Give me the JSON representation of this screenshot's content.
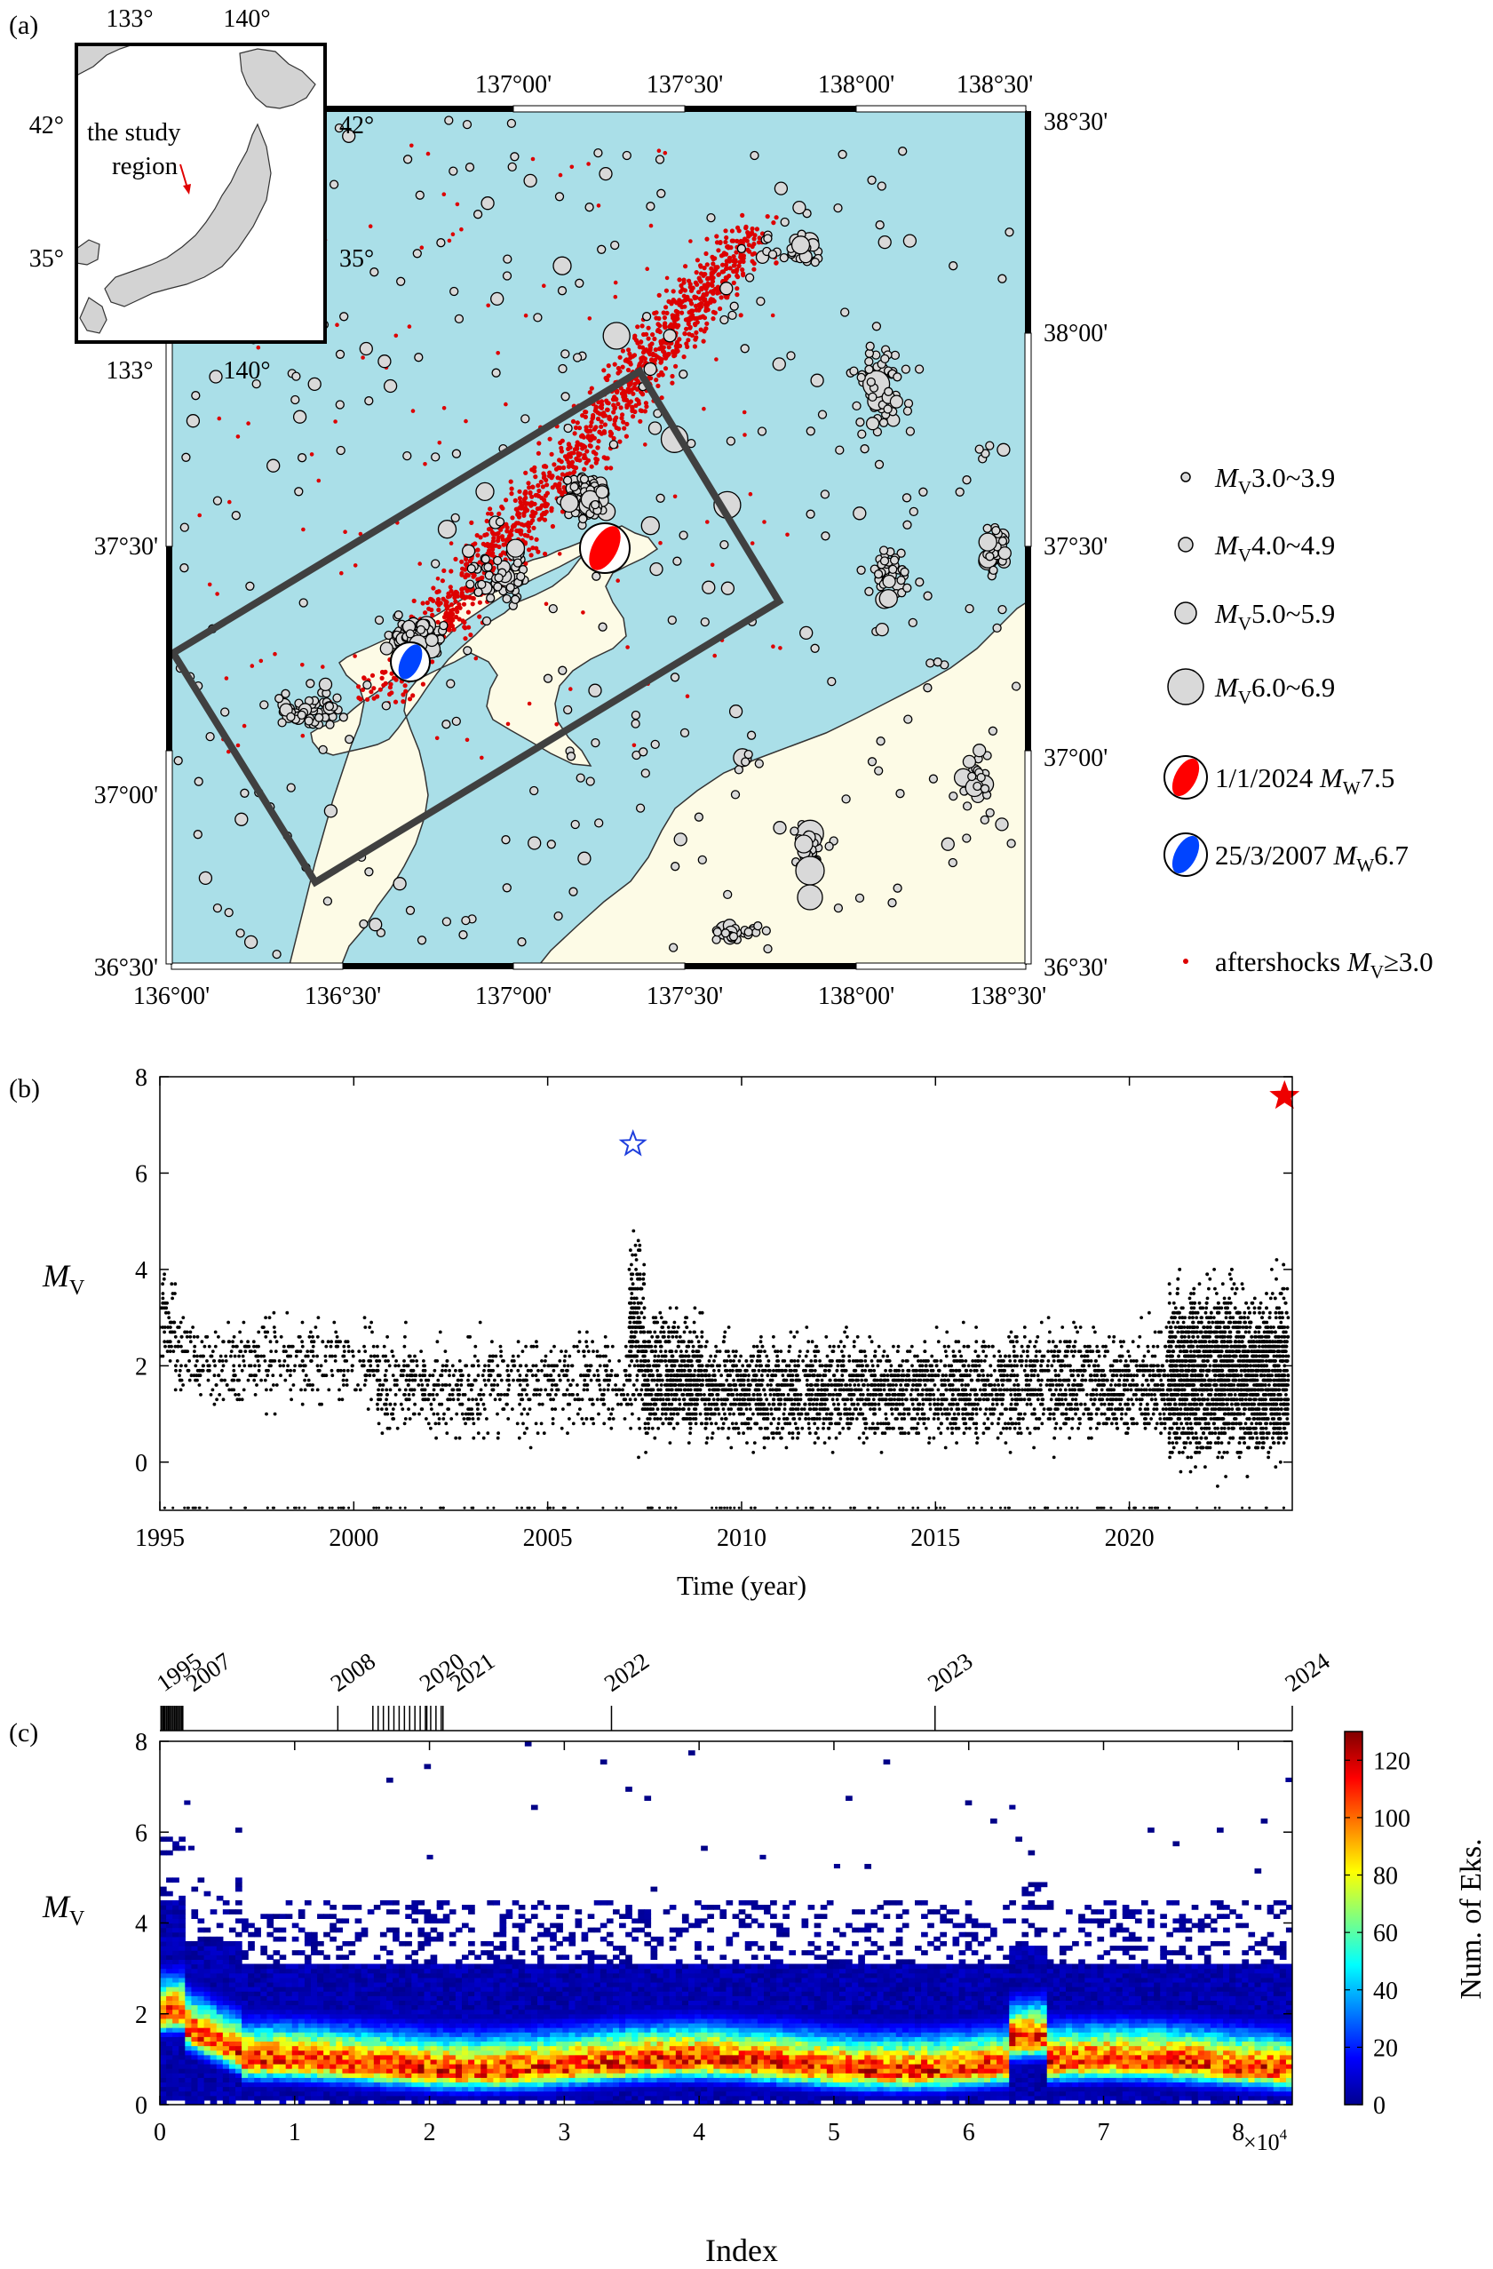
{
  "panels": {
    "a": {
      "label": "(a)",
      "inset": {
        "top_ticks": [
          "133°",
          "140°"
        ],
        "bottom_ticks": [
          "133°",
          "140°"
        ],
        "left_ticks": [
          "42°",
          "35°"
        ],
        "right_ticks": [
          "42°",
          "35°"
        ],
        "annotation_line1": "the study",
        "annotation_line2": "region"
      },
      "top_ticks": [
        "137°00'",
        "137°30'",
        "138°00'",
        "138°30'"
      ],
      "bottom_ticks": [
        "136°00'",
        "136°30'",
        "137°00'",
        "137°30'",
        "138°00'",
        "138°30'"
      ],
      "right_ticks": [
        "38°30'",
        "38°00'",
        "37°30'",
        "37°00'",
        "36°30'"
      ],
      "left_ticks": [
        "37°30'",
        "37°00'",
        "36°30'"
      ],
      "legend": [
        {
          "m": "M",
          "sub": "V",
          "text": "3.0~3.9"
        },
        {
          "m": "M",
          "sub": "V",
          "text": "4.0~4.9"
        },
        {
          "m": "M",
          "sub": "V",
          "text": "5.0~5.9"
        },
        {
          "m": "M",
          "sub": "V",
          "text": "6.0~6.9"
        },
        {
          "pre": "1/1/2024 ",
          "m": "M",
          "sub": "W",
          "text": "7.5"
        },
        {
          "pre": "25/3/2007 ",
          "m": "M",
          "sub": "W",
          "text": "6.7"
        },
        {
          "pre": "aftershocks ",
          "m": "M",
          "sub": "V",
          "text": "≥3.0"
        }
      ],
      "colors": {
        "sea": "#aadfe8",
        "land": "#fdfbe6",
        "mainshock_2024": "#ff0000",
        "mainshock_2007": "#0044ff",
        "aftershock": "#dd0000",
        "box": "#404040"
      }
    },
    "b": {
      "label": "(b)",
      "xlabel": "Time (year)",
      "ylabel_m": "M",
      "ylabel_sub": "V"
    },
    "c": {
      "label": "(c)",
      "xlabel": "Index",
      "ylabel_m": "M",
      "ylabel_sub": "V",
      "x_multiplier": "×10",
      "x_multiplier_exp": "4",
      "colorbar_label": "Num. of Eks.",
      "colorbar_ticks": [
        "0",
        "20",
        "40",
        "60",
        "80",
        "100",
        "120"
      ],
      "year_labels": [
        "1995",
        "2007",
        "2008",
        "2020",
        "2021",
        "2022",
        "2023",
        "2024"
      ]
    }
  },
  "chart_data": [
    {
      "type": "scatter",
      "panel": "b",
      "xlabel": "Time (year)",
      "ylabel": "MV",
      "xlim": [
        1995,
        2024.2
      ],
      "ylim": [
        -1,
        8
      ],
      "xticks": [
        "1995",
        "2000",
        "2005",
        "2010",
        "2015",
        "2020"
      ],
      "yticks": [
        "0",
        "2",
        "4",
        "6",
        "8"
      ],
      "markers": [
        {
          "x": 2007.2,
          "y": 6.6,
          "style": "open-star",
          "color": "#1f3fdd"
        },
        {
          "x": 2024.0,
          "y": 7.6,
          "style": "filled-star",
          "color": "#ee0000"
        }
      ],
      "segments": [
        {
          "x0": 1995.0,
          "x1": 1995.4,
          "ymin": 1.3,
          "ymax": 4.4,
          "density": 1.0
        },
        {
          "x0": 1995.4,
          "x1": 2000.5,
          "ymin": 0.8,
          "ymax": 3.4,
          "density": 0.6
        },
        {
          "x0": 2000.5,
          "x1": 2007.1,
          "ymin": 0.1,
          "ymax": 3.1,
          "density": 0.8
        },
        {
          "x0": 2007.1,
          "x1": 2007.5,
          "ymin": 0.0,
          "ymax": 5.6,
          "density": 4.0
        },
        {
          "x0": 2007.5,
          "x1": 2009.0,
          "ymin": 0.0,
          "ymax": 3.6,
          "density": 3.0
        },
        {
          "x0": 2009.0,
          "x1": 2016.0,
          "ymin": 0.0,
          "ymax": 3.0,
          "density": 1.8
        },
        {
          "x0": 2016.0,
          "x1": 2021.0,
          "ymin": 0.0,
          "ymax": 3.2,
          "density": 1.6
        },
        {
          "x0": 2021.0,
          "x1": 2024.1,
          "ymin": -0.6,
          "ymax": 4.3,
          "density": 6.0
        }
      ]
    },
    {
      "type": "heatmap",
      "panel": "c",
      "xlabel": "Index",
      "ylabel": "MV",
      "xlim": [
        0,
        84000
      ],
      "ylim": [
        0,
        8
      ],
      "xticks": [
        "0",
        "1",
        "2",
        "3",
        "4",
        "5",
        "6",
        "7",
        "8"
      ],
      "yticks": [
        "0",
        "2",
        "4",
        "6",
        "8"
      ],
      "clim": [
        0,
        130
      ],
      "colorbar_ticks": [
        "0",
        "20",
        "40",
        "60",
        "80",
        "100",
        "120"
      ],
      "year_markers": [
        {
          "label": "1995",
          "index": 300
        },
        {
          "label": "2007",
          "index": 1700
        },
        {
          "label": "2008",
          "index": 13200
        },
        {
          "label": "2020",
          "index": 19800
        },
        {
          "label": "2021",
          "index": 21000
        },
        {
          "label": "2022",
          "index": 33500
        },
        {
          "label": "2023",
          "index": 57500
        },
        {
          "label": "2024",
          "index": 84000
        }
      ]
    }
  ]
}
